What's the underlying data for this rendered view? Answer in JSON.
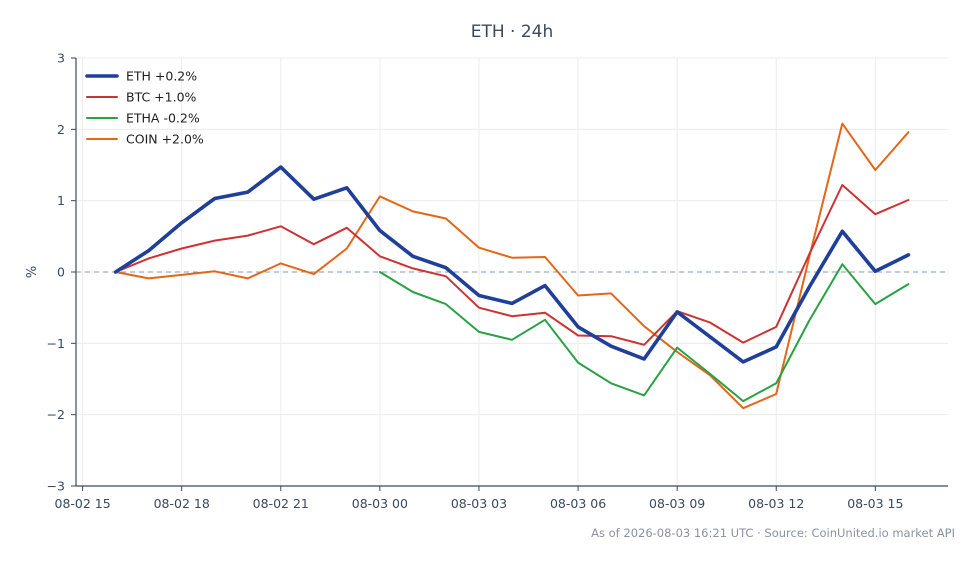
{
  "chart_data": {
    "type": "line",
    "title": "ETH · 24h",
    "ylabel": "%",
    "ylim": [
      -3,
      3
    ],
    "yticks": [
      -3,
      -2,
      -1,
      0,
      1,
      2,
      3
    ],
    "ytick_labels": [
      "−3",
      "−2",
      "−1",
      "0",
      "1",
      "2",
      "3"
    ],
    "xlim": [
      -0.2,
      26.2
    ],
    "xticks": [
      0,
      3,
      6,
      9,
      12,
      15,
      18,
      21,
      24
    ],
    "xtick_labels": [
      "08-02 15",
      "08-02 18",
      "08-02 21",
      "08-03 00",
      "08-03 03",
      "08-03 06",
      "08-03 09",
      "08-03 12",
      "08-03 15"
    ],
    "x_unit": "hours since 08-02 15:00",
    "grid": true,
    "zero_line": true,
    "legend_position": "top-left",
    "footer": "As of 2026-08-03 16:21 UTC · Source: CoinUnited.io market API",
    "series": [
      {
        "name": "ETH +0.2%",
        "color": "#1f3f99",
        "width": 3.6,
        "x": [
          1,
          2,
          3,
          4,
          5,
          6,
          7,
          8,
          9,
          10,
          11,
          12,
          13,
          14,
          15,
          16,
          17,
          18,
          19,
          20,
          21,
          22,
          23,
          24,
          25
        ],
        "y": [
          0.0,
          0.3,
          0.69,
          1.03,
          1.12,
          1.47,
          1.02,
          1.18,
          0.58,
          0.22,
          0.06,
          -0.33,
          -0.44,
          -0.19,
          -0.77,
          -1.04,
          -1.22,
          -0.56,
          -0.91,
          -1.26,
          -1.05,
          -0.21,
          0.57,
          0.01,
          0.24
        ]
      },
      {
        "name": "BTC +1.0%",
        "color": "#cc3333",
        "width": 2,
        "x": [
          1,
          2,
          3,
          4,
          5,
          6,
          7,
          8,
          9,
          10,
          11,
          12,
          13,
          14,
          15,
          16,
          17,
          18,
          19,
          20,
          21,
          22,
          23,
          24,
          25
        ],
        "y": [
          0.0,
          0.19,
          0.33,
          0.44,
          0.51,
          0.64,
          0.39,
          0.62,
          0.22,
          0.05,
          -0.06,
          -0.5,
          -0.62,
          -0.57,
          -0.89,
          -0.9,
          -1.02,
          -0.55,
          -0.71,
          -0.99,
          -0.77,
          0.25,
          1.22,
          0.81,
          1.01
        ]
      },
      {
        "name": "ETHA -0.2%",
        "color": "#27a244",
        "width": 2,
        "x": [
          9,
          10,
          11,
          12,
          13,
          14,
          15,
          16,
          17,
          18,
          19,
          20,
          21,
          22,
          23,
          24,
          25
        ],
        "y": [
          0.0,
          -0.28,
          -0.45,
          -0.84,
          -0.95,
          -0.67,
          -1.27,
          -1.56,
          -1.73,
          -1.06,
          -1.43,
          -1.81,
          -1.56,
          -0.68,
          0.11,
          -0.45,
          -0.17
        ]
      },
      {
        "name": "COIN +2.0%",
        "color": "#e26719",
        "width": 2,
        "x": [
          1,
          2,
          3,
          4,
          5,
          6,
          7,
          8,
          9,
          10,
          11,
          12,
          13,
          14,
          15,
          16,
          17,
          18,
          19,
          20,
          21,
          22,
          23,
          24,
          25
        ],
        "y": [
          0.0,
          -0.09,
          -0.04,
          0.01,
          -0.09,
          0.12,
          -0.03,
          0.33,
          1.06,
          0.85,
          0.75,
          0.34,
          0.2,
          0.21,
          -0.33,
          -0.3,
          -0.76,
          -1.12,
          -1.45,
          -1.91,
          -1.71,
          0.21,
          2.08,
          1.43,
          1.96
        ]
      }
    ]
  }
}
